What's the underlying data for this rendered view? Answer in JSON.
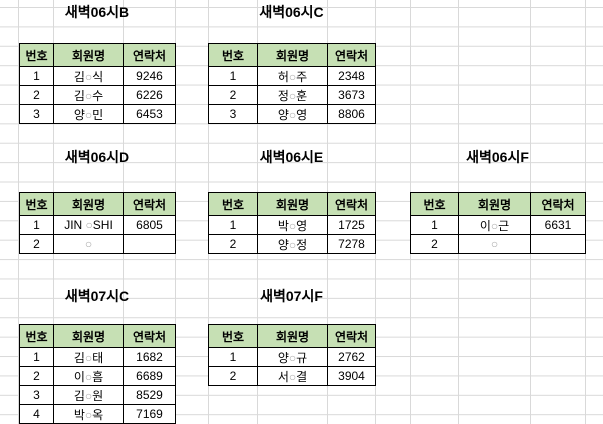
{
  "sheet": {
    "columns": [
      "번호",
      "회원명",
      "연락처"
    ],
    "tables": [
      {
        "id": "dawn06B",
        "title": "새벽06시B",
        "rows": [
          [
            "1",
            "김○식",
            "9246"
          ],
          [
            "2",
            "김○수",
            "6226"
          ],
          [
            "3",
            "양○민",
            "6453"
          ]
        ]
      },
      {
        "id": "dawn06C",
        "title": "새벽06시C",
        "rows": [
          [
            "1",
            "허○주",
            "2348"
          ],
          [
            "2",
            "정○훈",
            "3673"
          ],
          [
            "3",
            "양○영",
            "8806"
          ]
        ]
      },
      {
        "id": "dawn06D",
        "title": "새벽06시D",
        "rows": [
          [
            "1",
            "JIN ○SHI",
            "6805"
          ],
          [
            "2",
            "○",
            ""
          ]
        ]
      },
      {
        "id": "dawn06E",
        "title": "새벽06시E",
        "rows": [
          [
            "1",
            "박○영",
            "1725"
          ],
          [
            "2",
            "양○정",
            "7278"
          ]
        ]
      },
      {
        "id": "dawn06F",
        "title": "새벽06시F",
        "rows": [
          [
            "1",
            "이○근",
            "6631"
          ],
          [
            "2",
            "○",
            ""
          ]
        ]
      },
      {
        "id": "dawn07C",
        "title": "새벽07시C",
        "rows": [
          [
            "1",
            "김○태",
            "1682"
          ],
          [
            "2",
            "이○흠",
            "6689"
          ],
          [
            "3",
            "김○원",
            "8529"
          ],
          [
            "4",
            "박○옥",
            "7169"
          ]
        ]
      },
      {
        "id": "dawn07F",
        "title": "새벽07시F",
        "rows": [
          [
            "1",
            "양○규",
            "2762"
          ],
          [
            "2",
            "서○결",
            "3904"
          ]
        ]
      }
    ],
    "colors": {
      "header_fill": "#c6e0b4",
      "grid_line": "#d9d9d9",
      "table_border": "#000000",
      "masked_char": "#a8a8a8",
      "text": "#000000"
    }
  }
}
